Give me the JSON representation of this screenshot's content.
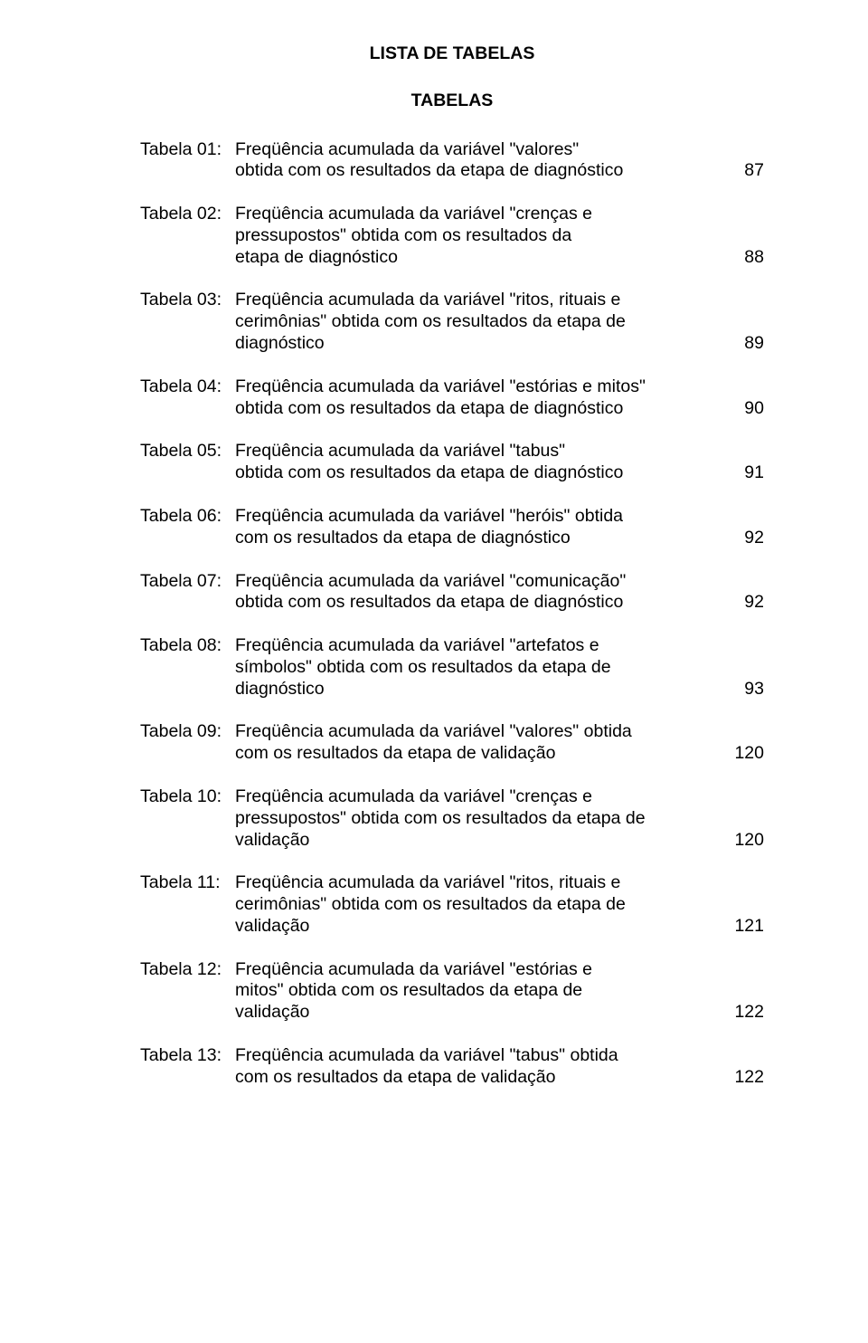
{
  "title": "LISTA DE TABELAS",
  "subtitle": "TABELAS",
  "font": {
    "family": "Arial",
    "size_pt": 15,
    "color": "#000000"
  },
  "background_color": "#ffffff",
  "entries": [
    {
      "label": "Tabela 01:",
      "line1": "Freqüência acumulada da variável \"valores\"",
      "line2": "obtida com os resultados da etapa de diagnóstico",
      "page": "87"
    },
    {
      "label": "Tabela 02:",
      "line1": "Freqüência acumulada da variável \"crenças e",
      "line2": "pressupostos\" obtida com os resultados da",
      "line3": "etapa de diagnóstico",
      "page": "88"
    },
    {
      "label": "Tabela 03:",
      "line1": "Freqüência acumulada da variável \"ritos, rituais e",
      "line2": "cerimônias\" obtida com os resultados da etapa de",
      "line3": "diagnóstico",
      "page": "89"
    },
    {
      "label": "Tabela 04:",
      "line1": "Freqüência acumulada da variável \"estórias e mitos\"",
      "line2": "obtida com os resultados da etapa de diagnóstico",
      "page": "90"
    },
    {
      "label": "Tabela 05:",
      "line1": "Freqüência acumulada da variável \"tabus\"",
      "line2": "obtida com os resultados da etapa de diagnóstico",
      "page": "91"
    },
    {
      "label": "Tabela 06:",
      "line1": "Freqüência acumulada da variável \"heróis\" obtida",
      "line2": "com os resultados da etapa de diagnóstico",
      "page": "92"
    },
    {
      "label": "Tabela 07:",
      "line1": "Freqüência acumulada da variável \"comunicação\"",
      "line2": "obtida com os resultados da etapa de diagnóstico",
      "page": "92"
    },
    {
      "label": "Tabela 08:",
      "line1": "Freqüência acumulada da variável \"artefatos e",
      "line2": "símbolos\" obtida com os resultados da etapa de",
      "line3": "diagnóstico",
      "page": "93"
    },
    {
      "label": "Tabela 09:",
      "line1": "Freqüência acumulada da variável \"valores\" obtida",
      "line2": "com os resultados da etapa de validação",
      "page": "120"
    },
    {
      "label": "Tabela 10:",
      "line1": "Freqüência acumulada da variável \"crenças e",
      "line2": "pressupostos\" obtida com os resultados da etapa de",
      "line3": " validação",
      "page": "120"
    },
    {
      "label": "Tabela 11:",
      "line1": "Freqüência acumulada da variável \"ritos, rituais e",
      "line2": "cerimônias\" obtida com os resultados da etapa de",
      "line3": "validação",
      "page": "121"
    },
    {
      "label": "Tabela 12:",
      "line1": "Freqüência acumulada da variável \"estórias e",
      "line2": "mitos\" obtida com os resultados da etapa de",
      "line3": "validação",
      "page": "122"
    },
    {
      "label": "Tabela 13:",
      "line1": "Freqüência acumulada da variável \"tabus\" obtida",
      "line2": "com os resultados da etapa de validação",
      "page": "122"
    }
  ]
}
